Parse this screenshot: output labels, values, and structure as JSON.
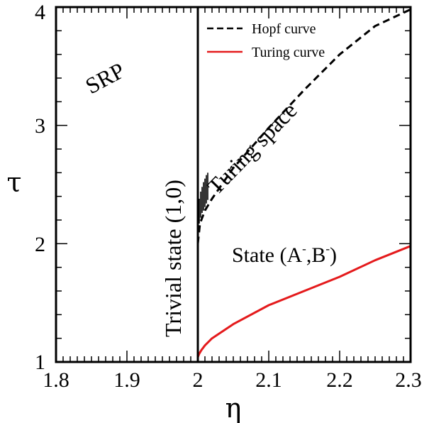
{
  "chart_data": {
    "type": "line",
    "xlabel": "η",
    "ylabel": "τ",
    "xlim": [
      1.8,
      2.3
    ],
    "ylim": [
      1,
      4
    ],
    "xticks": [
      "1.8",
      "1.9",
      "2",
      "2.1",
      "2.2",
      "2.3"
    ],
    "yticks": [
      "1",
      "2",
      "3",
      "4"
    ],
    "legend": {
      "position": "top-right",
      "entries": [
        "Hopf curve",
        "Turing curve"
      ]
    },
    "series": [
      {
        "name": "Hopf curve",
        "style": "dashed",
        "color": "#000000",
        "x": [
          2.0,
          2.003,
          2.01,
          2.02,
          2.05,
          2.1,
          2.15,
          2.2,
          2.25,
          2.3
        ],
        "y": [
          2.0,
          2.17,
          2.28,
          2.38,
          2.64,
          2.98,
          3.3,
          3.6,
          3.84,
          3.98
        ]
      },
      {
        "name": "Turing curve",
        "style": "solid",
        "color": "#e41a1c",
        "x": [
          2.0,
          2.002,
          2.005,
          2.01,
          2.02,
          2.05,
          2.1,
          2.15,
          2.2,
          2.25,
          2.3
        ],
        "y": [
          1.04,
          1.07,
          1.1,
          1.14,
          1.2,
          1.32,
          1.48,
          1.6,
          1.72,
          1.86,
          1.98
        ]
      },
      {
        "style": "solid",
        "color": "#000000",
        "x": [
          2.0,
          2.0
        ],
        "y": [
          1.0,
          4.0
        ]
      }
    ],
    "turing_space_hatch": {
      "x_from": 2.0,
      "x_to": 2.014,
      "y_bottom": [
        2.1,
        2.17,
        2.22,
        2.26,
        2.28,
        2.31,
        2.34,
        2.37
      ],
      "y_top": [
        2.3,
        2.38,
        2.44,
        2.48,
        2.52,
        2.55,
        2.58,
        2.6
      ]
    },
    "annotations": {
      "srp": {
        "text": "SRP",
        "color": "#e41a1c"
      },
      "trivial": {
        "text": "Trivial state (1,0)"
      },
      "turing_space": {
        "text": "Turing space"
      },
      "state_ab": {
        "main": "State (A",
        "mid": ",B",
        "end": ")",
        "sup": "-"
      }
    }
  }
}
